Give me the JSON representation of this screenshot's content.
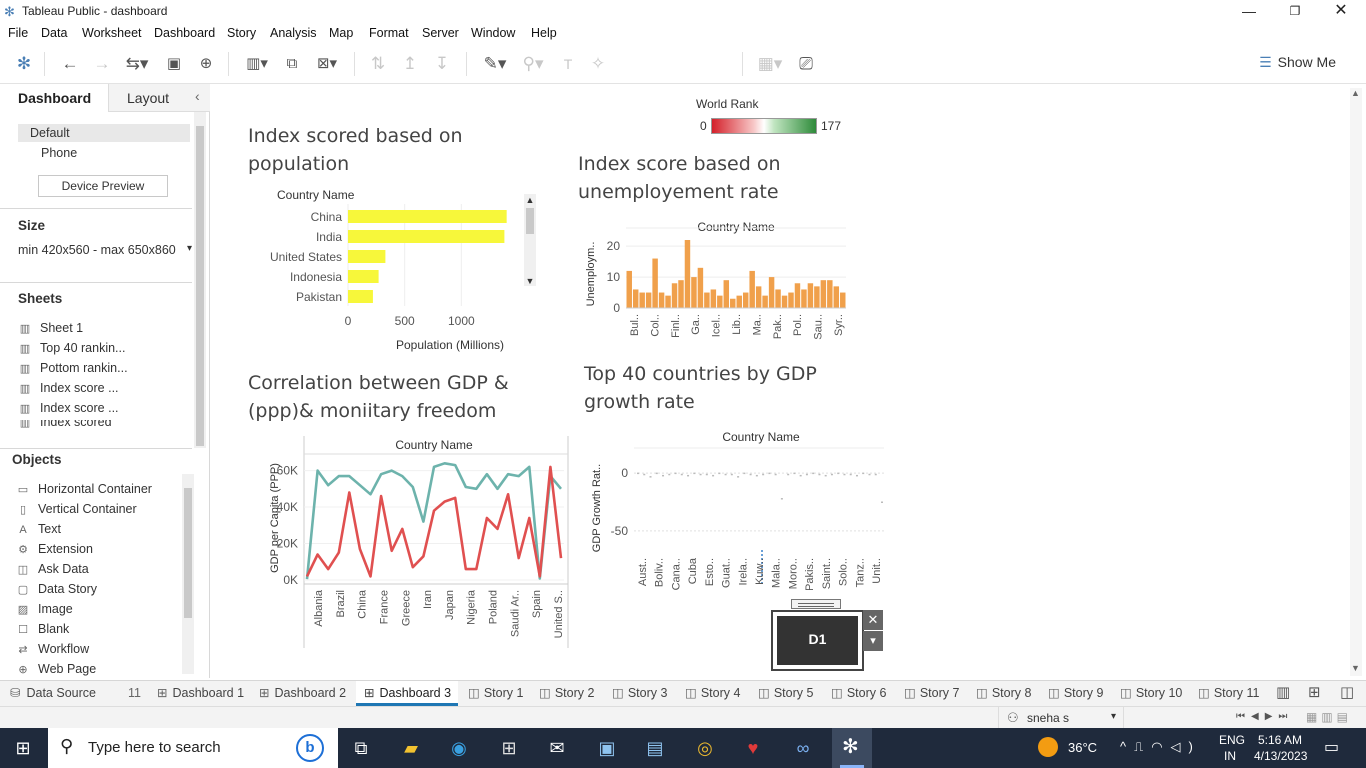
{
  "window": {
    "title": "Tableau Public - dashboard"
  },
  "menu": [
    "File",
    "Data",
    "Worksheet",
    "Dashboard",
    "Story",
    "Analysis",
    "Map",
    "Format",
    "Server",
    "Window",
    "Help"
  ],
  "toolbar": {
    "show_me": "Show Me"
  },
  "left_panel": {
    "tabs": {
      "dashboard": "Dashboard",
      "layout": "Layout"
    },
    "devices": [
      "Default",
      "Phone"
    ],
    "device_preview": "Device Preview",
    "size_label": "Size",
    "size_value": "min 420x560 - max 650x860",
    "sheets_label": "Sheets",
    "sheets": [
      "Sheet 1",
      "Top 40 rankin...",
      "Pottom rankin...",
      "Index score ...",
      "Index score ...",
      "Index scored"
    ],
    "objects_label": "Objects",
    "objects": [
      {
        "label": "Horizontal Container",
        "icon": "horizontal-container-icon"
      },
      {
        "label": "Vertical Container",
        "icon": "vertical-container-icon"
      },
      {
        "label": "Text",
        "icon": "text-icon"
      },
      {
        "label": "Extension",
        "icon": "extension-icon"
      },
      {
        "label": "Ask Data",
        "icon": "ask-data-icon"
      },
      {
        "label": "Data Story",
        "icon": "data-story-icon"
      },
      {
        "label": "Image",
        "icon": "image-icon"
      },
      {
        "label": "Blank",
        "icon": "blank-icon"
      },
      {
        "label": "Workflow",
        "icon": "workflow-icon"
      },
      {
        "label": "Web Page",
        "icon": "web-page-icon"
      }
    ]
  },
  "dashboard": {
    "legend": {
      "title": "World Rank",
      "min": "0",
      "max": "177"
    },
    "float_object": {
      "label": "D1"
    }
  },
  "chart_data": [
    {
      "type": "bar",
      "title": "Index scored based on population",
      "orientation": "horizontal",
      "category_header": "Country Name",
      "categories": [
        "China",
        "India",
        "United States",
        "Indonesia",
        "Pakistan"
      ],
      "values": [
        1400,
        1380,
        330,
        270,
        220
      ],
      "xlabel": "Population (Millions)",
      "xticks": [
        "0",
        "500",
        "1000"
      ],
      "xlim": [
        0,
        1500
      ],
      "color": "#f7f73a"
    },
    {
      "type": "bar",
      "title": "Index score based on unemployement rate",
      "category_header": "Country Name",
      "ylabel": "Unemploym..",
      "yticks": [
        "0",
        "10",
        "20"
      ],
      "ylim": [
        0,
        22
      ],
      "tick_labels": [
        "Bul..",
        "Col..",
        "Finl..",
        "Ga..",
        "Icel..",
        "Lib..",
        "Ma..",
        "Pak..",
        "Pol..",
        "Sau..",
        "Syr.."
      ],
      "values": [
        12,
        6,
        5,
        5,
        16,
        5,
        4,
        8,
        9,
        22,
        10,
        13,
        5,
        6,
        4,
        9,
        3,
        4,
        5,
        12,
        7,
        4,
        10,
        6,
        4,
        5,
        8,
        6,
        8,
        7,
        9,
        9,
        7,
        5
      ],
      "color": "#f0a04b"
    },
    {
      "type": "line",
      "title": "Correlation between GDP &(ppp)& moniitary freedom",
      "category_header": "Country Name",
      "ylabel": "GDP per Capita (PPP)",
      "yticks": [
        "0K",
        "20K",
        "40K",
        "60K"
      ],
      "ylim": [
        0,
        68000
      ],
      "tick_labels": [
        "Albania",
        "Brazil",
        "China",
        "France",
        "Greece",
        "Iran",
        "Japan",
        "Nigeria",
        "Poland",
        "Saudi Ar..",
        "Spain",
        "United S.."
      ],
      "series": [
        {
          "color": "#6db3ac",
          "values": [
            500,
            60000,
            52000,
            57000,
            57000,
            52000,
            47000,
            58000,
            60000,
            57000,
            51000,
            32000,
            62000,
            64000,
            63000,
            51000,
            50000,
            58000,
            50000,
            58000,
            57000,
            62000,
            800,
            57000,
            50000
          ]
        },
        {
          "color": "#e05050",
          "values": [
            2000,
            14000,
            6000,
            15000,
            48000,
            17000,
            2000,
            46000,
            16000,
            28000,
            7000,
            13000,
            38000,
            43000,
            45000,
            6000,
            6000,
            34000,
            28000,
            47000,
            12000,
            34000,
            2000,
            62000,
            12000
          ]
        }
      ]
    },
    {
      "type": "scatter",
      "title": "Top  40  countries by GDP growth rate",
      "category_header": "Country Name",
      "ylabel": "GDP Growth Rat..",
      "yticks": [
        "-50",
        "0"
      ],
      "ylim": [
        -70,
        20
      ],
      "tick_labels": [
        "Aust..",
        "Boliv..",
        "Cana..",
        "Cuba",
        "Esto..",
        "Guat..",
        "Irela..",
        "Kuw..",
        "Mala..",
        "Moro..",
        "Pakis..",
        "Saint..",
        "Solo..",
        "Tanz..",
        "Unit.."
      ],
      "values": [
        0,
        -1,
        -3,
        0,
        -2,
        -1,
        0,
        -1,
        -2,
        0,
        -1,
        -1,
        -2,
        0,
        -1,
        -1,
        -3,
        0,
        -1,
        -2,
        -1,
        0,
        -1,
        -22,
        -1,
        0,
        -2,
        -1,
        0,
        -1,
        -2,
        -1,
        0,
        -1,
        -1,
        -2,
        0,
        -1,
        -1,
        -25
      ]
    }
  ],
  "sheet_tabs": [
    "Data Source",
    "11",
    "Dashboard 1",
    "Dashboard 2",
    "Dashboard 3",
    "Story 1",
    "Story 2",
    "Story 3",
    "Story 4",
    "Story 5",
    "Story 6",
    "Story 7",
    "Story 8",
    "Story 9",
    "Story 10",
    "Story 11"
  ],
  "active_tab": "Dashboard 3",
  "status": {
    "user": "sneha s"
  },
  "taskbar": {
    "search_placeholder": "Type here to search",
    "weather": "36°C",
    "lang_top": "ENG",
    "lang_bottom": "IN",
    "time": "5:16 AM",
    "date": "4/13/2023"
  },
  "colors": {
    "accent": "#1f77b4",
    "taskbar": "#1f2a3c"
  }
}
